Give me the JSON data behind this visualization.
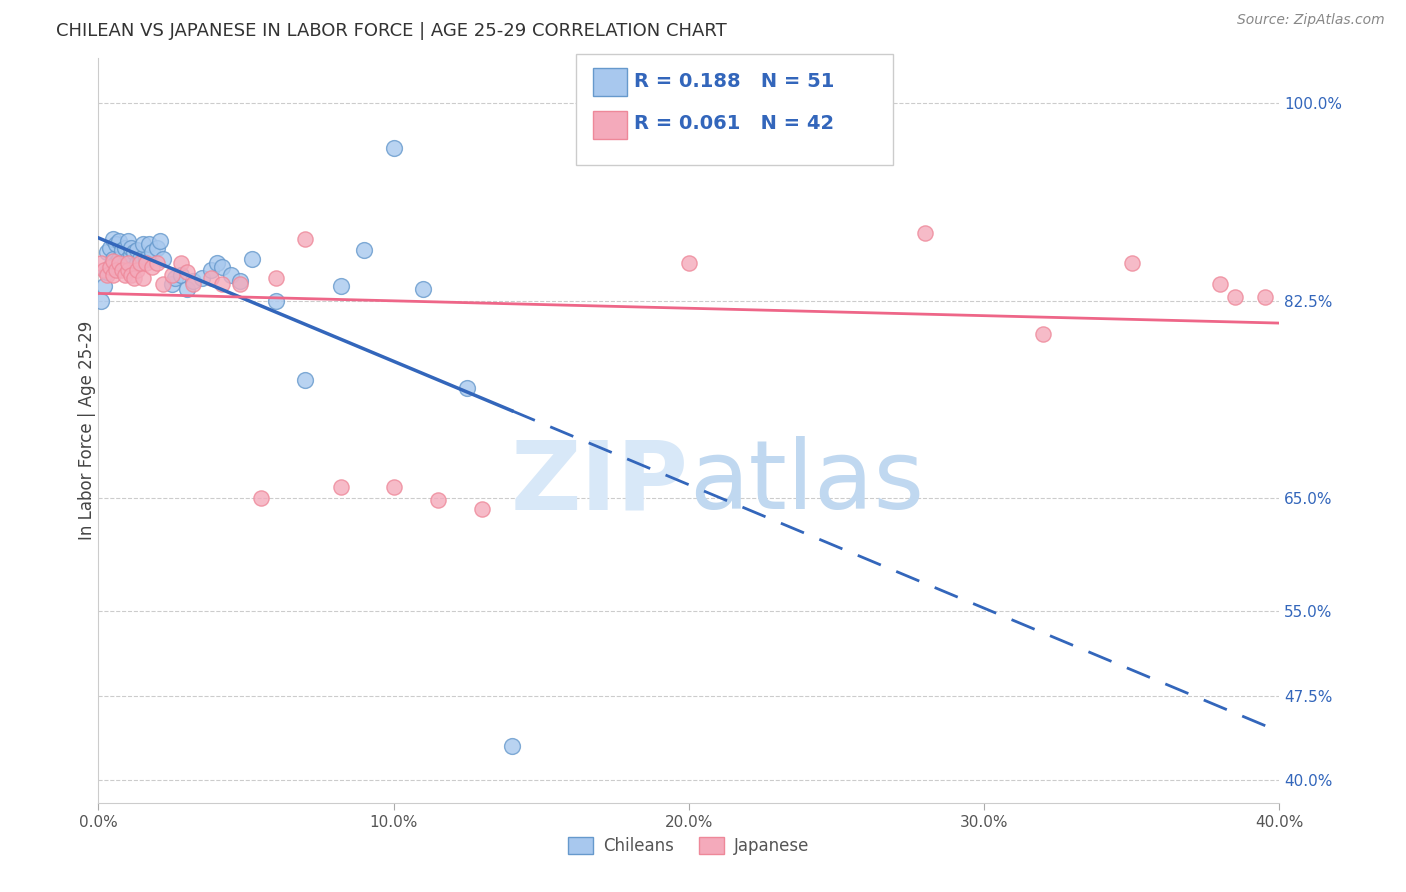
{
  "title": "CHILEAN VS JAPANESE IN LABOR FORCE | AGE 25-29 CORRELATION CHART",
  "source": "Source: ZipAtlas.com",
  "ylabel_label": "In Labor Force | Age 25-29",
  "xlim": [
    0.0,
    0.4
  ],
  "ylim": [
    0.38,
    1.04
  ],
  "yticks": [
    0.4,
    0.475,
    0.55,
    0.65,
    0.825,
    1.0
  ],
  "ytick_labels": [
    "40.0%",
    "47.5%",
    "55.0%",
    "65.0%",
    "82.5%",
    "100.0%"
  ],
  "xticks": [
    0.0,
    0.1,
    0.2,
    0.3,
    0.4
  ],
  "xtick_labels": [
    "0.0%",
    "10.0%",
    "20.0%",
    "30.0%",
    "40.0%"
  ],
  "R_chilean": 0.188,
  "N_chilean": 51,
  "R_japanese": 0.061,
  "N_japanese": 42,
  "color_chilean_face": "#A8C8EE",
  "color_chilean_edge": "#6699CC",
  "color_japanese_face": "#F4AABB",
  "color_japanese_edge": "#EE8899",
  "color_line_chilean": "#3366BB",
  "color_line_japanese": "#EE6688",
  "chilean_x": [
    0.001,
    0.002,
    0.003,
    0.003,
    0.004,
    0.004,
    0.005,
    0.005,
    0.006,
    0.006,
    0.007,
    0.007,
    0.008,
    0.008,
    0.009,
    0.009,
    0.01,
    0.01,
    0.011,
    0.011,
    0.012,
    0.013,
    0.013,
    0.014,
    0.015,
    0.016,
    0.017,
    0.018,
    0.02,
    0.021,
    0.022,
    0.025,
    0.026,
    0.028,
    0.03,
    0.032,
    0.035,
    0.038,
    0.04,
    0.042,
    0.045,
    0.048,
    0.052,
    0.06,
    0.07,
    0.082,
    0.09,
    0.1,
    0.11,
    0.125,
    0.14
  ],
  "chilean_y": [
    0.825,
    0.838,
    0.85,
    0.868,
    0.855,
    0.872,
    0.862,
    0.88,
    0.858,
    0.875,
    0.862,
    0.878,
    0.855,
    0.87,
    0.858,
    0.872,
    0.862,
    0.878,
    0.865,
    0.872,
    0.868,
    0.858,
    0.87,
    0.862,
    0.875,
    0.862,
    0.875,
    0.868,
    0.872,
    0.878,
    0.862,
    0.84,
    0.845,
    0.848,
    0.835,
    0.842,
    0.845,
    0.852,
    0.858,
    0.855,
    0.848,
    0.842,
    0.862,
    0.825,
    0.755,
    0.838,
    0.87,
    0.96,
    0.835,
    0.748,
    0.43
  ],
  "japanese_x": [
    0.001,
    0.002,
    0.003,
    0.004,
    0.005,
    0.005,
    0.006,
    0.007,
    0.008,
    0.009,
    0.01,
    0.01,
    0.011,
    0.012,
    0.013,
    0.014,
    0.015,
    0.016,
    0.018,
    0.02,
    0.022,
    0.025,
    0.028,
    0.03,
    0.032,
    0.038,
    0.042,
    0.048,
    0.055,
    0.06,
    0.07,
    0.082,
    0.1,
    0.115,
    0.13,
    0.2,
    0.28,
    0.32,
    0.35,
    0.38,
    0.385,
    0.395
  ],
  "japanese_y": [
    0.858,
    0.852,
    0.848,
    0.855,
    0.848,
    0.86,
    0.852,
    0.858,
    0.852,
    0.848,
    0.852,
    0.858,
    0.848,
    0.845,
    0.852,
    0.858,
    0.845,
    0.858,
    0.855,
    0.858,
    0.84,
    0.848,
    0.858,
    0.85,
    0.84,
    0.845,
    0.84,
    0.84,
    0.65,
    0.845,
    0.88,
    0.66,
    0.66,
    0.648,
    0.64,
    0.858,
    0.885,
    0.795,
    0.858,
    0.84,
    0.828,
    0.828
  ],
  "regression_chilean_x0": 0.0,
  "regression_chilean_x_solid_end": 0.14,
  "regression_chilean_x_end": 0.4,
  "regression_japanese_x0": 0.0,
  "regression_japanese_x_end": 0.4
}
